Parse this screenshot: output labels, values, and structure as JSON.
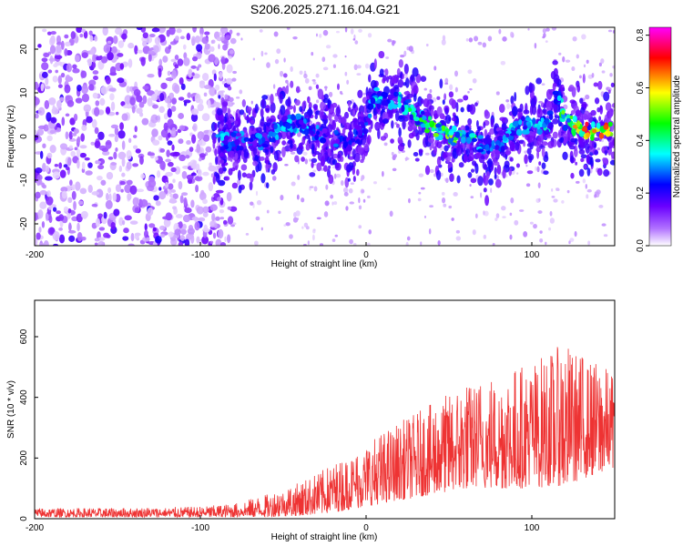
{
  "figure_title": "S206.2025.271.16.04.G21",
  "chart_data": [
    {
      "type": "heatmap",
      "name": "spectrogram",
      "title": "S206.2025.271.16.04.G21",
      "xlabel": "Height of straight line (km)",
      "ylabel": "Frequency (Hz)",
      "xlim": [
        -200,
        150
      ],
      "ylim": [
        -25,
        25
      ],
      "xticks": [
        -200,
        -100,
        0,
        100
      ],
      "xtick_labels": [
        "-200",
        "-100",
        "0",
        "100"
      ],
      "yticks": [
        -20,
        -10,
        0,
        10,
        20
      ],
      "ytick_labels": [
        "-20",
        "-10",
        "0",
        "10",
        "20"
      ],
      "colorbar": {
        "label": "Normalized spectral amplitude",
        "range": [
          0.0,
          0.83
        ],
        "ticks": [
          0.0,
          0.2,
          0.4,
          0.6,
          0.8
        ],
        "tick_labels": [
          "0.0",
          "0.2",
          "0.4",
          "0.6",
          "0.8"
        ],
        "colormap": [
          "#ffffff",
          "#7a00ff",
          "#0000ff",
          "#00ffff",
          "#00ff00",
          "#ffff00",
          "#ff0000",
          "#ff00ff"
        ]
      },
      "noise_region": {
        "x_range": [
          -200,
          -90
        ],
        "amplitude_range": [
          0.02,
          0.15
        ]
      },
      "ridge": {
        "x": [
          -90,
          -80,
          -70,
          -60,
          -50,
          -40,
          -30,
          -20,
          -10,
          0,
          5,
          10,
          20,
          30,
          40,
          50,
          60,
          70,
          80,
          90,
          100,
          110,
          115,
          120,
          130,
          140,
          150
        ],
        "frequency": [
          -1,
          -1,
          -1,
          -1,
          3,
          3,
          1,
          0,
          -2,
          3,
          10,
          8,
          8,
          5,
          2,
          0,
          0,
          -2,
          -3,
          2,
          3,
          2,
          10,
          3,
          2,
          1,
          2
        ],
        "amplitude": [
          0.35,
          0.3,
          0.3,
          0.3,
          0.35,
          0.35,
          0.3,
          0.3,
          0.25,
          0.3,
          0.4,
          0.35,
          0.4,
          0.45,
          0.5,
          0.55,
          0.5,
          0.4,
          0.35,
          0.35,
          0.35,
          0.4,
          0.35,
          0.55,
          0.7,
          0.75,
          0.6
        ]
      }
    },
    {
      "type": "line",
      "name": "snr",
      "xlabel": "Height of straight line (km)",
      "ylabel": "SNR (10 * v/v)",
      "xlim": [
        -200,
        150
      ],
      "ylim": [
        0,
        720
      ],
      "xticks": [
        -200,
        -100,
        0,
        100
      ],
      "xtick_labels": [
        "-200",
        "-100",
        "0",
        "100"
      ],
      "yticks": [
        0,
        200,
        400,
        600
      ],
      "ytick_labels": [
        "0",
        "200",
        "400",
        "600"
      ],
      "color": "#ee3333",
      "trend": {
        "x": [
          -200,
          -150,
          -100,
          -80,
          -60,
          -40,
          -20,
          0,
          20,
          40,
          60,
          80,
          100,
          120,
          150
        ],
        "low": [
          5,
          5,
          5,
          5,
          5,
          10,
          20,
          40,
          60,
          80,
          100,
          100,
          100,
          110,
          170
        ],
        "high": [
          35,
          35,
          40,
          50,
          80,
          120,
          180,
          250,
          320,
          380,
          450,
          480,
          520,
          580,
          480
        ]
      }
    }
  ]
}
